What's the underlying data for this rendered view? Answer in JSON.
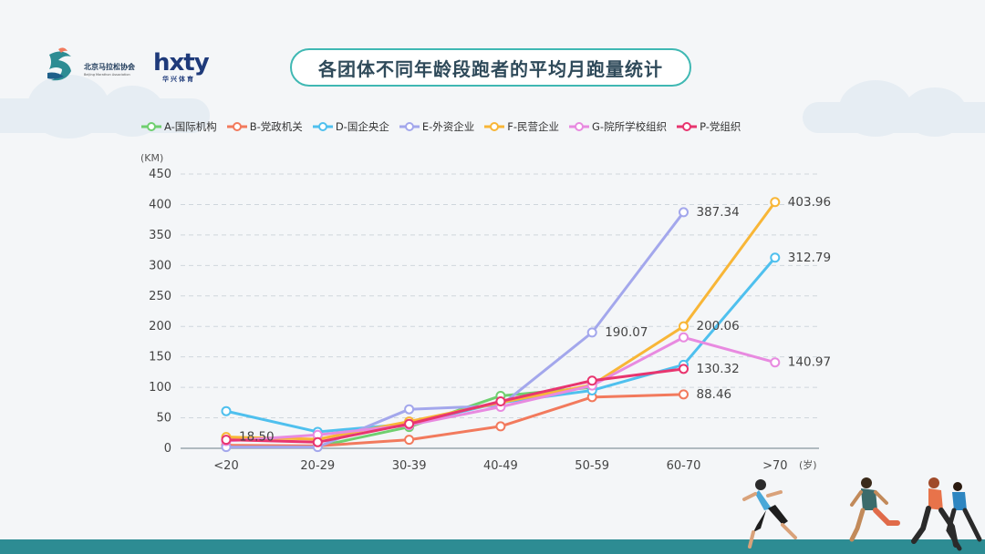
{
  "title": "各团体不同年龄段跑者的平均月跑量统计",
  "logos": {
    "bma_name": "北京马拉松协会",
    "bma_sub": "Beijing Marathon Association",
    "hxty_name": "hxty",
    "hxty_sub": "华兴体育"
  },
  "colors": {
    "A": "#6fcf6f",
    "B": "#f27a5d",
    "D": "#4fc0ee",
    "E": "#a3a7ec",
    "F": "#f8b637",
    "G": "#e88ae0",
    "P": "#e8356f",
    "accent": "#3fb8b3"
  },
  "chart_data": {
    "type": "line",
    "title": "各团体不同年龄段跑者的平均月跑量统计",
    "ylabel": "(KM)",
    "xlabel": "(岁)",
    "ylim": [
      0,
      450
    ],
    "yticks": [
      0,
      50,
      100,
      150,
      200,
      250,
      300,
      350,
      400,
      450
    ],
    "grid": true,
    "legend_position": "top",
    "categories": [
      "<20",
      "20-29",
      "30-39",
      "40-49",
      "50-59",
      "60-70",
      ">70"
    ],
    "series": [
      {
        "key": "A",
        "name": "A-国际机构",
        "values": [
          3,
          3,
          35,
          86,
          100,
          null,
          null
        ]
      },
      {
        "key": "B",
        "name": "B-党政机关",
        "values": [
          5,
          4,
          14,
          36,
          84,
          88.46,
          null
        ]
      },
      {
        "key": "D",
        "name": "D-国企央企",
        "values": [
          61,
          27,
          40,
          75,
          95,
          137,
          312.79
        ]
      },
      {
        "key": "E",
        "name": "E-外资企业",
        "values": [
          2,
          2,
          64,
          70,
          190.07,
          387.34,
          null
        ]
      },
      {
        "key": "F",
        "name": "F-民营企业",
        "values": [
          18.5,
          15,
          44,
          75,
          104,
          200.06,
          403.96
        ]
      },
      {
        "key": "G",
        "name": "G-院所学校组织",
        "values": [
          12,
          22,
          38,
          68,
          103,
          182,
          140.97
        ]
      },
      {
        "key": "P",
        "name": "P-党组织",
        "values": [
          14,
          10,
          40,
          77,
          111,
          130.32,
          null
        ]
      }
    ],
    "data_labels": [
      {
        "series": "F",
        "index": 0,
        "text": "18.50"
      },
      {
        "series": "E",
        "index": 4,
        "text": "190.07"
      },
      {
        "series": "E",
        "index": 5,
        "text": "387.34"
      },
      {
        "series": "F",
        "index": 5,
        "text": "200.06"
      },
      {
        "series": "P",
        "index": 5,
        "text": "130.32"
      },
      {
        "series": "B",
        "index": 5,
        "text": "88.46"
      },
      {
        "series": "F",
        "index": 6,
        "text": "403.96"
      },
      {
        "series": "D",
        "index": 6,
        "text": "312.79"
      },
      {
        "series": "G",
        "index": 6,
        "text": "140.97"
      }
    ]
  }
}
